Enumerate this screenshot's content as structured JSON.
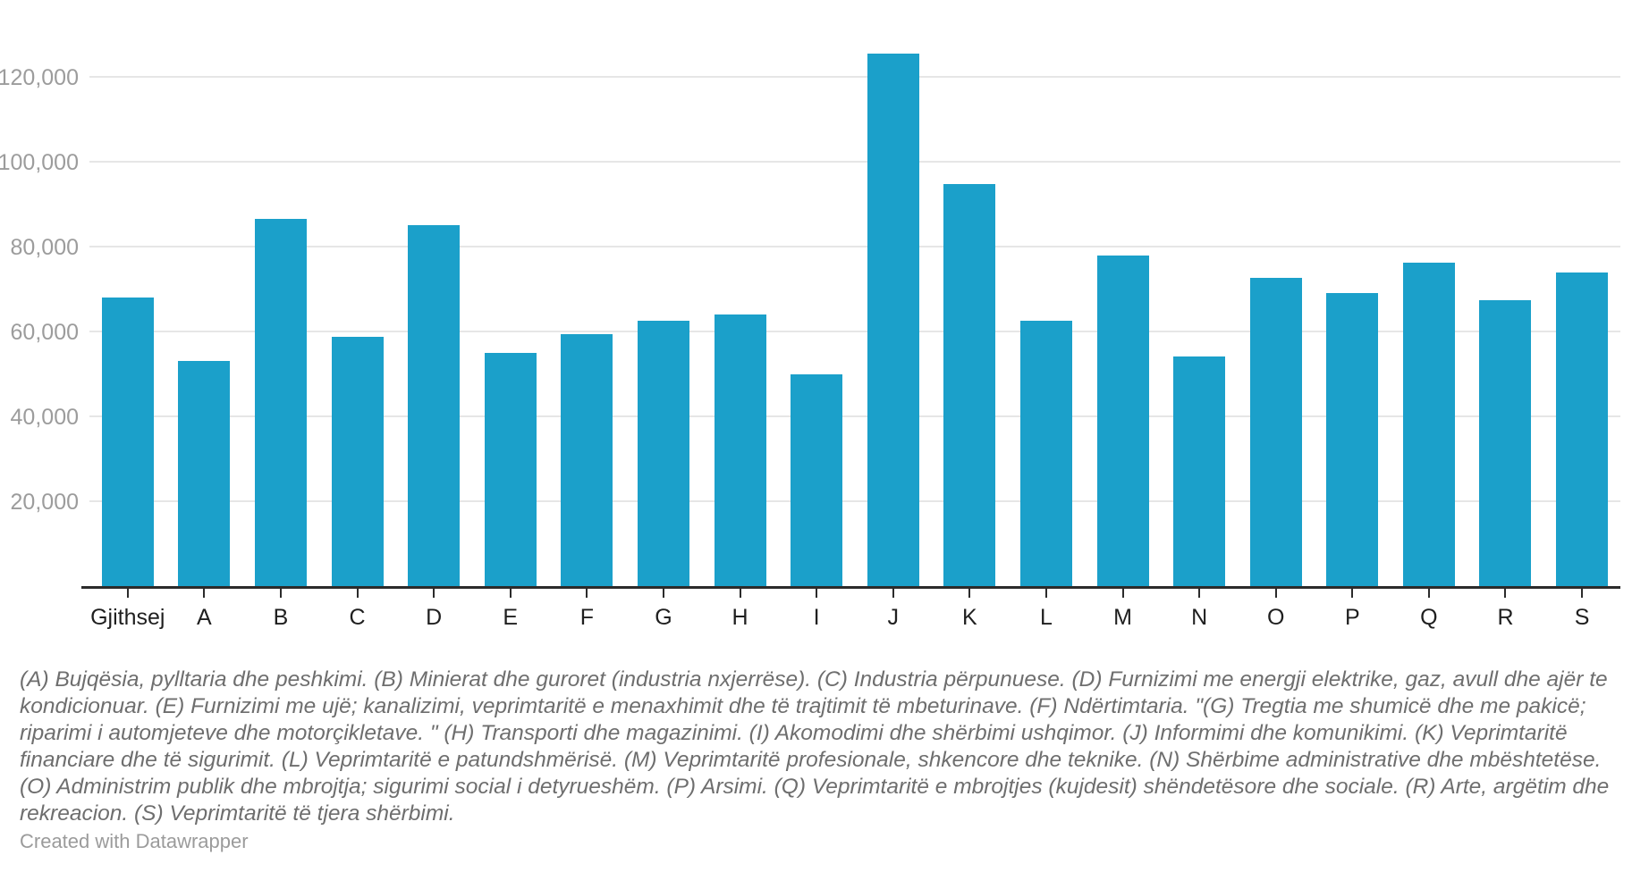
{
  "chart_data": {
    "type": "bar",
    "categories": [
      "Gjithsej",
      "A",
      "B",
      "C",
      "D",
      "E",
      "F",
      "G",
      "H",
      "I",
      "J",
      "K",
      "L",
      "M",
      "N",
      "O",
      "P",
      "Q",
      "R",
      "S"
    ],
    "values": [
      68300,
      53400,
      86900,
      59000,
      85300,
      55200,
      59700,
      62700,
      64300,
      50100,
      125700,
      95000,
      62800,
      78100,
      54300,
      72800,
      69300,
      76400,
      67600,
      74200
    ],
    "title": "",
    "xlabel": "",
    "ylabel": "",
    "ylim": [
      0,
      130000
    ],
    "yticks": [
      20000,
      40000,
      60000,
      80000,
      100000,
      120000
    ],
    "ytick_labels": [
      "20,000",
      "40,000",
      "60,000",
      "80,000",
      "100,000",
      "120,000"
    ],
    "grid": true,
    "legend": "none",
    "bar_color": "#1BA0CA"
  },
  "footnote": {
    "text": "(A) Bujqësia, pylltaria dhe peshkimi. (B) Minierat dhe guroret (industria nxjerrëse). (C) Industria përpunuese. (D) Furnizimi me energji elektrike, gaz, avull dhe ajër te kondicionuar. (E) Furnizimi me ujë; kanalizimi, veprimtaritë e menaxhimit dhe të trajtimit të mbeturinave. (F) Ndërtimtaria. \"(G) Tregtia me shumicë dhe me pakicë; riparimi i automjeteve dhe motorçikletave. \" (H) Transporti dhe magazinimi. (I) Akomodimi dhe shërbimi ushqimor. (J) Informimi dhe komunikimi. (K) Veprimtaritë financiare dhe të sigurimit. (L) Veprimtaritë e patundshmërisë. (M) Veprimtaritë profesionale, shkencore dhe teknike. (N) Shërbime administrative dhe mbështetëse. (O) Administrim publik dhe mbrojtja; sigurimi social i detyrueshëm. (P) Arsimi. (Q) Veprimtaritë e mbrojtjes (kujdesit) shëndetësore dhe sociale. (R) Arte, argëtim dhe rekreacion. (S) Veprimtaritë të tjera shërbimi."
  },
  "attribution": {
    "label": "Created with Datawrapper"
  },
  "colors": {
    "bar": "#1BA0CA",
    "gridline": "#E6E6E6",
    "axis_line": "#2B2B2B",
    "tick": "#2B2B2B",
    "y_label": "#9C9C9C",
    "x_label": "#1F1F1F",
    "footnote": "#6E6E6E",
    "attribution": "#9B9B9B",
    "background": "#FFFFFF"
  }
}
